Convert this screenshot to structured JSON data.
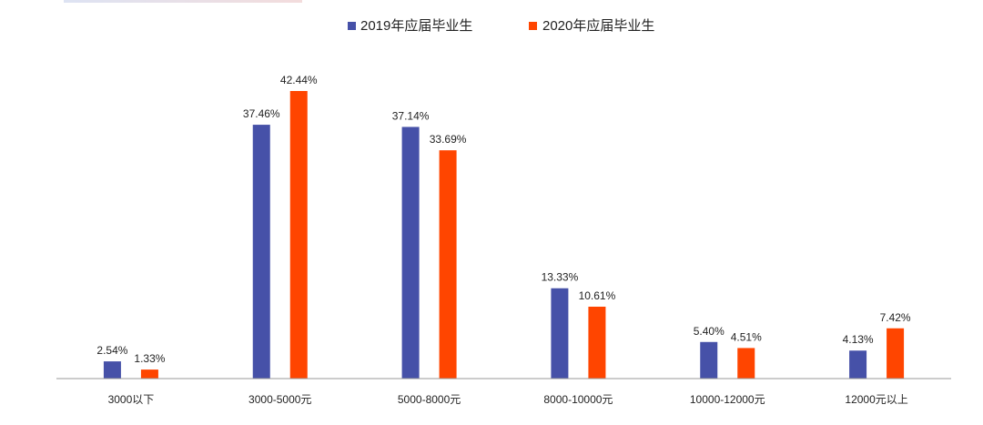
{
  "chart_data": {
    "type": "bar",
    "categories": [
      "3000以下",
      "3000-5000元",
      "5000-8000元",
      "8000-10000元",
      "10000-12000元",
      "12000元以上"
    ],
    "series": [
      {
        "name": "2019年应届毕业生",
        "color": "#4651a8",
        "values": [
          2.54,
          37.46,
          37.14,
          13.33,
          5.4,
          4.13
        ],
        "labels": [
          "2.54%",
          "37.46%",
          "37.14%",
          "13.33%",
          "5.40%",
          "4.13%"
        ]
      },
      {
        "name": "2020年应届毕业生",
        "color": "#ff4500",
        "values": [
          1.33,
          42.44,
          33.69,
          10.61,
          4.51,
          7.42
        ],
        "labels": [
          "1.33%",
          "42.44%",
          "33.69%",
          "10.61%",
          "4.51%",
          "7.42%"
        ]
      }
    ],
    "ylim": [
      0,
      42.44
    ],
    "grid": false,
    "legend": "top-center"
  }
}
